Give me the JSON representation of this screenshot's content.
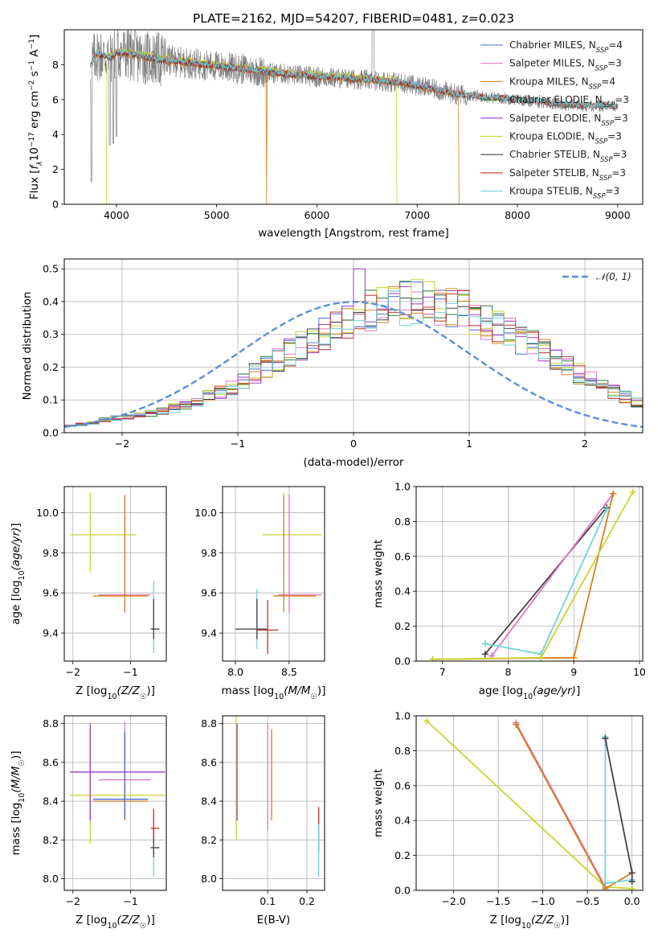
{
  "figure_title": "PLATE=2162, MJD=54207, FIBERID=0481, z=0.023",
  "colors": {
    "grid": "#b0b0b0",
    "observed": "#7f7f7f",
    "gaussian": "#5b8fd9"
  },
  "chart_data": [
    {
      "panel": "spectrum",
      "type": "line",
      "title": "PLATE=2162, MJD=54207, FIBERID=0481, z=0.023",
      "xlabel": "wavelength [Angstrom, rest frame]",
      "ylabel": "Flux [fλ10⁻¹⁷ erg cm⁻² s⁻¹ A⁻¹]",
      "xlim": [
        3480,
        9250
      ],
      "ylim": [
        0,
        10
      ],
      "xticks": [
        4000,
        5000,
        6000,
        7000,
        8000,
        9000
      ],
      "yticks": [
        0,
        2,
        4,
        6,
        8
      ],
      "grid": false,
      "legend_position": "upper-right",
      "observed": {
        "wave_range": [
          3740,
          9000
        ],
        "continuum_points": [
          [
            3740,
            7.9
          ],
          [
            3800,
            8.6
          ],
          [
            3950,
            8.4
          ],
          [
            4000,
            8.7
          ],
          [
            4150,
            8.6
          ],
          [
            4400,
            8.3
          ],
          [
            4860,
            8.0
          ],
          [
            5180,
            7.8
          ],
          [
            5600,
            7.5
          ],
          [
            6000,
            7.3
          ],
          [
            6563,
            7.1
          ],
          [
            6800,
            7.0
          ],
          [
            7000,
            6.8
          ],
          [
            7400,
            6.3
          ],
          [
            7600,
            6.2
          ],
          [
            8000,
            6.0
          ],
          [
            8500,
            5.7
          ],
          [
            9000,
            5.6
          ]
        ],
        "dips": [
          [
            3750,
            1.3
          ],
          [
            3934,
            3.4
          ],
          [
            3969,
            3.5
          ],
          [
            4000,
            3.9
          ],
          [
            6563,
            6.2
          ]
        ]
      },
      "series": [
        {
          "name": "Chabrier MILES, N_SSP=4",
          "legend_label": "Chabrier MILES, N",
          "legend_sub": "SSP",
          "legend_value": "=4",
          "color": "#4a6bd6",
          "range": [
            3740,
            7400
          ],
          "offset": 0.0
        },
        {
          "name": "Salpeter MILES, N_SSP=3",
          "legend_label": "Salpeter MILES, N",
          "legend_sub": "SSP",
          "legend_value": "=3",
          "color": "#e377c2",
          "range": [
            3740,
            7410
          ],
          "offset": 0.05
        },
        {
          "name": "Kroupa MILES, N_SSP=4",
          "legend_label": "Kroupa MILES, N",
          "legend_sub": "SSP",
          "legend_value": "=4",
          "color": "#d6801e",
          "range": [
            3740,
            7420
          ],
          "offset": -0.05,
          "drops": [
            5500,
            7420
          ]
        },
        {
          "name": "Chabrier ELODIE, N_SSP=3",
          "legend_label": "Chabrier ELODIE, N",
          "legend_sub": "SSP",
          "legend_value": "=3",
          "color": "#2c7d3c",
          "range": [
            3900,
            6800
          ],
          "offset": 0.08
        },
        {
          "name": "Salpeter ELODIE, N_SSP=3",
          "legend_label": "Salpeter ELODIE, N",
          "legend_sub": "SSP",
          "legend_value": "=3",
          "color": "#9b3fc0",
          "range": [
            3900,
            6800
          ],
          "offset": 0.1
        },
        {
          "name": "Kroupa ELODIE, N_SSP=3",
          "legend_label": "Kroupa ELODIE, N",
          "legend_sub": "SSP",
          "legend_value": "=3",
          "color": "#c8d430",
          "range": [
            3900,
            6800
          ],
          "offset": 0.15,
          "drops": [
            3900,
            6800
          ]
        },
        {
          "name": "Chabrier STELIB, N_SSP=3",
          "legend_label": "Chabrier STELIB, N",
          "legend_sub": "SSP",
          "legend_value": "=3",
          "color": "#444444",
          "range": [
            3740,
            9000
          ],
          "offset": 0.0
        },
        {
          "name": "Salpeter STELIB, N_SSP=3",
          "legend_label": "Salpeter STELIB, N",
          "legend_sub": "SSP",
          "legend_value": "=3",
          "color": "#c0332a",
          "range": [
            3740,
            9000
          ],
          "offset": 0.02
        },
        {
          "name": "Kroupa STELIB, N_SSP=3",
          "legend_label": "Kroupa STELIB, N",
          "legend_sub": "SSP",
          "legend_value": "=3",
          "color": "#6fd4d8",
          "range": [
            3740,
            9000
          ],
          "offset": 0.05
        }
      ]
    },
    {
      "panel": "residuals",
      "type": "histogram-step",
      "xlabel": "(data-model)/error",
      "ylabel": "Normed distribution",
      "xlim": [
        -2.5,
        2.5
      ],
      "ylim": [
        0,
        0.53
      ],
      "xticks": [
        -2,
        -1,
        0,
        1,
        2
      ],
      "yticks": [
        0.0,
        0.1,
        0.2,
        0.3,
        0.4,
        0.5
      ],
      "grid": true,
      "legend_position": "upper-right",
      "legend": "𝒩(0, 1)",
      "bin_width": 0.1,
      "bin_start": -2.5,
      "histogram_envelope": [
        0.02,
        0.025,
        0.03,
        0.04,
        0.045,
        0.05,
        0.055,
        0.06,
        0.065,
        0.075,
        0.085,
        0.095,
        0.11,
        0.125,
        0.14,
        0.16,
        0.18,
        0.2,
        0.22,
        0.245,
        0.265,
        0.285,
        0.305,
        0.32,
        0.34,
        0.355,
        0.37,
        0.38,
        0.39,
        0.395,
        0.4,
        0.395,
        0.39,
        0.38,
        0.37,
        0.355,
        0.34,
        0.32,
        0.305,
        0.285,
        0.265,
        0.245,
        0.22,
        0.2,
        0.18,
        0.16,
        0.14,
        0.125,
        0.11,
        0.095
      ],
      "peak_value": 0.5,
      "gaussian": {
        "mu": 0,
        "sigma": 1
      }
    },
    {
      "panel": "age-vs-Z",
      "type": "errorbar",
      "xlabel": "Z [log10(Z/Z☉)]",
      "ylabel": "age  [log10(age/yr)]",
      "xlim": [
        -2.15,
        -0.38
      ],
      "ylim": [
        9.26,
        10.13
      ],
      "xticks": [
        -2,
        -1
      ],
      "yticks": [
        9.4,
        9.6,
        9.8,
        10.0
      ],
      "grid": true,
      "points": [
        {
          "x": -1.7,
          "xerr": [
            0.35,
            0.8
          ],
          "y": 9.89,
          "yerr": [
            0.19,
            0.21
          ],
          "color": "#c8d430"
        },
        {
          "x": -1.1,
          "xerr": [
            0.45,
            0.45
          ],
          "y": 9.59,
          "yerr": [
            0.09,
            0.5
          ],
          "color": "#e377c2"
        },
        {
          "x": -1.1,
          "xerr": [
            0.55,
            0.4
          ],
          "y": 9.585,
          "yerr": [
            0.08,
            0.5
          ],
          "color": "#d6801e"
        },
        {
          "x": -0.6,
          "xerr": [
            0.05,
            0.1
          ],
          "y": 9.42,
          "yerr": [
            0.12,
            0.24
          ],
          "color": "#6fd4d8"
        },
        {
          "x": -0.6,
          "xerr": [
            0.05,
            0.1
          ],
          "y": 9.42,
          "yerr": [
            0.05,
            0.15
          ],
          "color": "#444444"
        }
      ]
    },
    {
      "panel": "age-vs-mass",
      "type": "errorbar",
      "xlabel": "mass [log10(M/M☉)]",
      "ylabel": "",
      "xlim": [
        7.88,
        8.83
      ],
      "ylim": [
        9.26,
        10.13
      ],
      "xticks": [
        8.0,
        8.5
      ],
      "yticks": [
        9.4,
        9.6,
        9.8,
        10.0
      ],
      "grid": true,
      "points": [
        {
          "x": 8.45,
          "xerr": [
            0.2,
            0.35
          ],
          "y": 9.89,
          "yerr": [
            0.19,
            0.21
          ],
          "color": "#c8d430"
        },
        {
          "x": 8.5,
          "xerr": [
            0.1,
            0.3
          ],
          "y": 9.59,
          "yerr": [
            0.09,
            0.5
          ],
          "color": "#e377c2"
        },
        {
          "x": 8.45,
          "xerr": [
            0.1,
            0.3
          ],
          "y": 9.585,
          "yerr": [
            0.08,
            0.5
          ],
          "color": "#d6801e"
        },
        {
          "x": 8.2,
          "xerr": [
            0.2,
            0.1
          ],
          "y": 9.42,
          "yerr": [
            0.1,
            0.2
          ],
          "color": "#6fd4d8"
        },
        {
          "x": 8.2,
          "xerr": [
            0.2,
            0.1
          ],
          "y": 9.42,
          "yerr": [
            0.05,
            0.15
          ],
          "color": "#444444"
        },
        {
          "x": 8.3,
          "xerr": [
            0.1,
            0.1
          ],
          "y": 9.415,
          "yerr": [
            0.12,
            0.15
          ],
          "color": "#c0332a"
        }
      ]
    },
    {
      "panel": "mass-weight-vs-age",
      "type": "line",
      "xlabel": "age  [log10(age/yr)]",
      "ylabel": "mass weight",
      "xlim": [
        6.6,
        10.05
      ],
      "ylim": [
        0,
        1.0
      ],
      "xticks": [
        7,
        8,
        9,
        10
      ],
      "yticks": [
        0.0,
        0.2,
        0.4,
        0.6,
        0.8,
        1.0
      ],
      "grid": true,
      "series": [
        {
          "name": "Chabrier STELIB",
          "color": "#444444",
          "x": [
            7.65,
            9.5
          ],
          "y": [
            0.04,
            0.88
          ]
        },
        {
          "name": "Salpeter MILES",
          "color": "#e377c2",
          "x": [
            7.75,
            9.6
          ],
          "y": [
            0.03,
            0.96
          ]
        },
        {
          "name": "Kroupa MILES",
          "color": "#d6801e",
          "x": [
            6.85,
            9.0,
            9.6
          ],
          "y": [
            0.01,
            0.02,
            0.96
          ]
        },
        {
          "name": "Kroupa STELIB",
          "color": "#6fd4d8",
          "x": [
            7.65,
            8.5,
            9.5
          ],
          "y": [
            0.1,
            0.04,
            0.87
          ]
        },
        {
          "name": "Kroupa ELODIE",
          "color": "#c8d430",
          "x": [
            6.85,
            8.5,
            9.9
          ],
          "y": [
            0.01,
            0.02,
            0.97
          ]
        }
      ]
    },
    {
      "panel": "mass-vs-Z",
      "type": "errorbar",
      "xlabel": "Z [log10(Z/Z☉)]",
      "ylabel": "mass [log10(M/M☉)]",
      "xlim": [
        -2.15,
        -0.38
      ],
      "ylim": [
        7.94,
        8.84
      ],
      "xticks": [
        -2,
        -1
      ],
      "yticks": [
        8.0,
        8.2,
        8.4,
        8.6,
        8.8
      ],
      "grid": true,
      "points": [
        {
          "x": -1.7,
          "xerr": [
            0.35,
            1.3
          ],
          "y": 8.43,
          "yerr": [
            0.25,
            0.35
          ],
          "color": "#c8d430"
        },
        {
          "x": -1.7,
          "xerr": [
            0.35,
            1.3
          ],
          "y": 8.55,
          "yerr": [
            0.25,
            0.25
          ],
          "color": "#9b3fc0"
        },
        {
          "x": -1.1,
          "xerr": [
            0.45,
            0.45
          ],
          "y": 8.51,
          "yerr": [
            0.2,
            0.3
          ],
          "color": "#e377c2"
        },
        {
          "x": -1.1,
          "xerr": [
            0.55,
            0.4
          ],
          "y": 8.4,
          "yerr": [
            0.1,
            0.35
          ],
          "color": "#d6801e"
        },
        {
          "x": -1.1,
          "xerr": [
            0.55,
            0.4
          ],
          "y": 8.41,
          "yerr": [
            0.1,
            0.35
          ],
          "color": "#4a6bd6"
        },
        {
          "x": -0.6,
          "xerr": [
            0.05,
            0.1
          ],
          "y": 8.16,
          "yerr": [
            0.15,
            0.1
          ],
          "color": "#6fd4d8"
        },
        {
          "x": -0.6,
          "xerr": [
            0.05,
            0.1
          ],
          "y": 8.16,
          "yerr": [
            0.05,
            0.1
          ],
          "color": "#444444"
        },
        {
          "x": -0.6,
          "xerr": [
            0.05,
            0.1
          ],
          "y": 8.26,
          "yerr": [
            0.05,
            0.1
          ],
          "color": "#c0332a"
        }
      ]
    },
    {
      "panel": "mass-vs-EBV",
      "type": "errorbar",
      "xlabel": "E(B-V)",
      "ylabel": "",
      "xlim": [
        -0.015,
        0.245
      ],
      "ylim": [
        7.94,
        8.84
      ],
      "xticks": [
        0.1,
        0.2
      ],
      "yticks": [
        8.0,
        8.2,
        8.4,
        8.6,
        8.8
      ],
      "grid": true,
      "points": [
        {
          "x": 0.02,
          "yerr": [
            0.3,
            0.35
          ],
          "y": 8.5,
          "color": "#c8d430"
        },
        {
          "x": 0.022,
          "yerr": [
            0.2,
            0.3
          ],
          "y": 8.5,
          "color": "#9b3fc0"
        },
        {
          "x": 0.1,
          "yerr": [
            0.25,
            0.3
          ],
          "y": 8.5,
          "color": "#e377c2"
        },
        {
          "x": 0.11,
          "yerr": [
            0.2,
            0.27
          ],
          "y": 8.5,
          "color": "#d6801e"
        },
        {
          "x": 0.23,
          "yerr": [
            0.12,
            0.11
          ],
          "y": 8.26,
          "color": "#c0332a"
        },
        {
          "x": 0.23,
          "yerr": [
            0.14,
            0.13
          ],
          "y": 8.15,
          "color": "#6fd4d8"
        }
      ]
    },
    {
      "panel": "mass-weight-vs-Z",
      "type": "line",
      "xlabel": "Z [log10(Z/Z☉)]",
      "ylabel": "mass weight",
      "xlim": [
        -2.42,
        0.12
      ],
      "ylim": [
        0,
        1.0
      ],
      "xticks": [
        -2.0,
        -1.5,
        -1.0,
        -0.5,
        0.0
      ],
      "yticks": [
        0.0,
        0.2,
        0.4,
        0.6,
        0.8,
        1.0
      ],
      "grid": true,
      "series": [
        {
          "name": "Kroupa ELODIE",
          "color": "#c8d430",
          "x": [
            -2.3,
            -0.3,
            0.0
          ],
          "y": [
            0.97,
            0.02,
            0.01
          ]
        },
        {
          "name": "Salpeter MILES",
          "color": "#e377c2",
          "x": [
            -1.3,
            -0.3
          ],
          "y": [
            0.96,
            0.02
          ]
        },
        {
          "name": "Kroupa MILES",
          "color": "#d6801e",
          "x": [
            -1.3,
            -0.3,
            0.0
          ],
          "y": [
            0.95,
            0.01,
            0.1
          ]
        },
        {
          "name": "Kroupa STELIB",
          "color": "#6fd4d8",
          "x": [
            -0.3,
            -0.3,
            0.0
          ],
          "y": [
            0.88,
            0.04,
            0.06
          ]
        },
        {
          "name": "Chabrier STELIB",
          "color": "#444444",
          "x": [
            -0.3,
            0.0,
            0.0
          ],
          "y": [
            0.87,
            0.1,
            0.05
          ]
        }
      ]
    }
  ]
}
